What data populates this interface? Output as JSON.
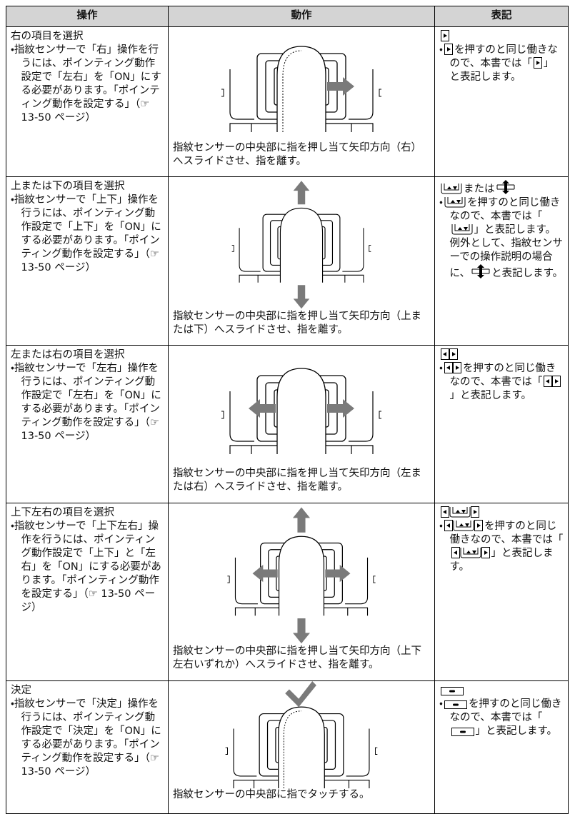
{
  "header": {
    "operation": "操作",
    "action": "動作",
    "notation": "表記"
  },
  "rows": [
    {
      "operation": {
        "title": "右の項目を選択",
        "note": "・指紋センサーで「右」操作を行うには、ポインティング動作設定で「左右」を「ON」にする必要があります。「ポインティング動作を設定する」（☞ 13-50 ページ）"
      },
      "action": {
        "caption": "指紋センサーの中央部に指を押し当て矢印方向（右）へスライドさせ、指を離す。"
      },
      "notation": {
        "parts": [
          "・",
          "を押すのと同じ働きなので、本書では「",
          "」と表記します。"
        ]
      }
    },
    {
      "operation": {
        "title": "上または下の項目を選択",
        "note": "・指紋センサーで「上下」操作を行うには、ポインティング動作設定で「上下」を「ON」にする必要があります。「ポインティング動作を設定する」（☞ 13-50 ページ）"
      },
      "action": {
        "caption": "指紋センサーの中央部に指を押し当て矢印方向（上または下）へスライドさせ、指を離す。"
      },
      "notation": {
        "head": [
          "または"
        ],
        "parts": [
          "・",
          "を押すのと同じ働きなので、本書では「",
          "」と表記します。例外として、指紋センサーでの操作説明の場合に、",
          "と表記します。"
        ]
      }
    },
    {
      "operation": {
        "title": "左または右の項目を選択",
        "note": "・指紋センサーで「左右」操作を行うには、ポインティング動作設定で「左右」を「ON」にする必要があります。「ポインティング動作を設定する」（☞ 13-50 ページ）"
      },
      "action": {
        "caption": "指紋センサーの中央部に指を押し当て矢印方向（左または右）へスライドさせ、指を離す。"
      },
      "notation": {
        "parts": [
          "・",
          "を押すのと同じ働きなので、本書では「",
          "」と表記します。"
        ]
      }
    },
    {
      "operation": {
        "title": "上下左右の項目を選択",
        "note": "・指紋センサーで「上下左右」操作を行うには、ポインティング動作設定で「上下」と「左右」を「ON」にする必要があります。「ポインティング動作を設定する」（☞ 13-50 ページ）"
      },
      "action": {
        "caption": "指紋センサーの中央部に指を押し当て矢印方向（上下左右いずれか）へスライドさせ、指を離す。"
      },
      "notation": {
        "parts": [
          "・",
          "を押すのと同じ働きなので、本書では「",
          "」と表記します。"
        ]
      }
    },
    {
      "operation": {
        "title": "決定",
        "note": "・指紋センサーで「決定」操作を行うには、ポインティング動作設定で「決定」を「ON」にする必要があります。「ポインティング動作を設定する」（☞ 13-50 ページ）"
      },
      "action": {
        "caption": "指紋センサーの中央部に指でタッチする。"
      },
      "notation": {
        "parts": [
          "・",
          "を押すのと同じ働きなので、本書では「",
          "」と表記します。"
        ]
      }
    }
  ]
}
